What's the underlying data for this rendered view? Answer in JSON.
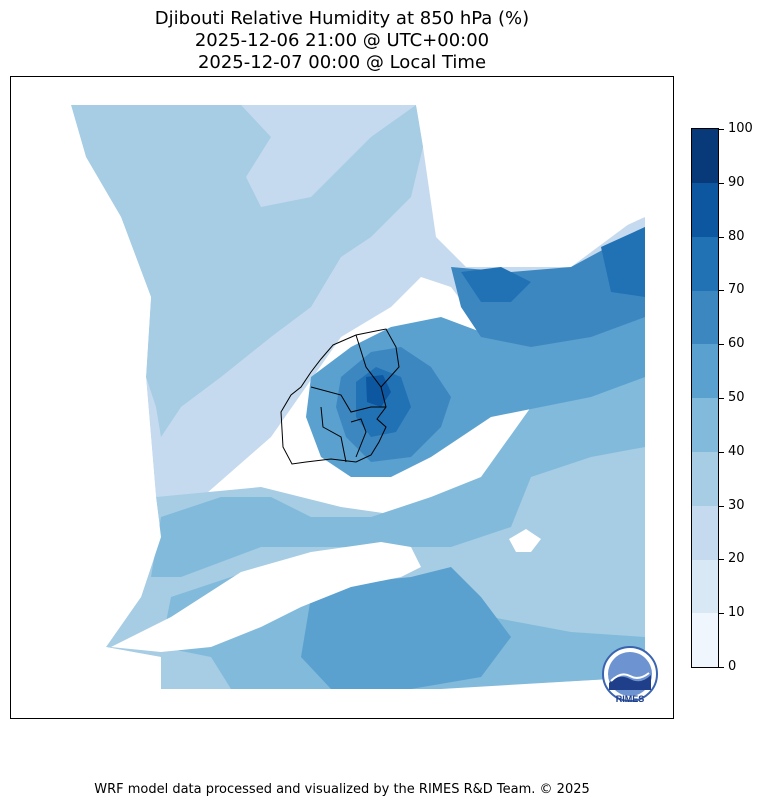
{
  "title": {
    "line1": "Djibouti Relative Humidity at 850 hPa (%)",
    "line2": "2025-12-06 21:00 @ UTC+00:00",
    "line3": "2025-12-07 00:00 @ Local Time"
  },
  "colorbar": {
    "ticks": [
      "0",
      "10",
      "20",
      "30",
      "40",
      "50",
      "60",
      "70",
      "80",
      "90",
      "100"
    ],
    "colors": [
      "#f0f6fd",
      "#d9e8f5",
      "#c5daee",
      "#a6cde4",
      "#82badb",
      "#5aa1d0",
      "#3d87c0",
      "#2171b5",
      "#0d56a0",
      "#083a7a"
    ]
  },
  "logo": {
    "text": "RIMES"
  },
  "footer": "WRF model data processed and visualized by the RIMES R&D Team. © 2025"
}
